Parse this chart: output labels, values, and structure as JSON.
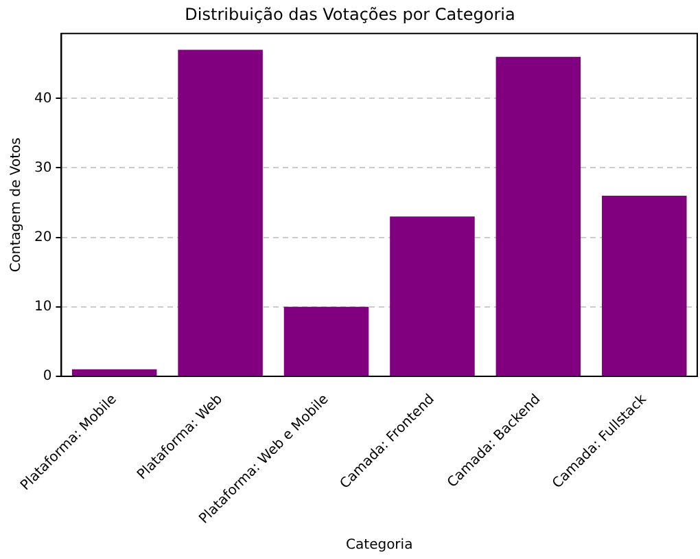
{
  "chart_data": {
    "type": "bar",
    "title": "Distribuição das Votações por Categoria",
    "xlabel": "Categoria",
    "ylabel": "Contagem de Votos",
    "categories": [
      "Plataforma: Mobile",
      "Plataforma: Web",
      "Plataforma: Web e Mobile",
      "Camada: Frontend",
      "Camada: Backend",
      "Camada: Fullstack"
    ],
    "values": [
      1,
      47,
      10,
      23,
      46,
      26
    ],
    "color": "#800080",
    "ylim": [
      0,
      49.35
    ],
    "yticks": [
      0,
      10,
      20,
      30,
      40
    ],
    "grid": "y",
    "line_style": "dashed"
  }
}
